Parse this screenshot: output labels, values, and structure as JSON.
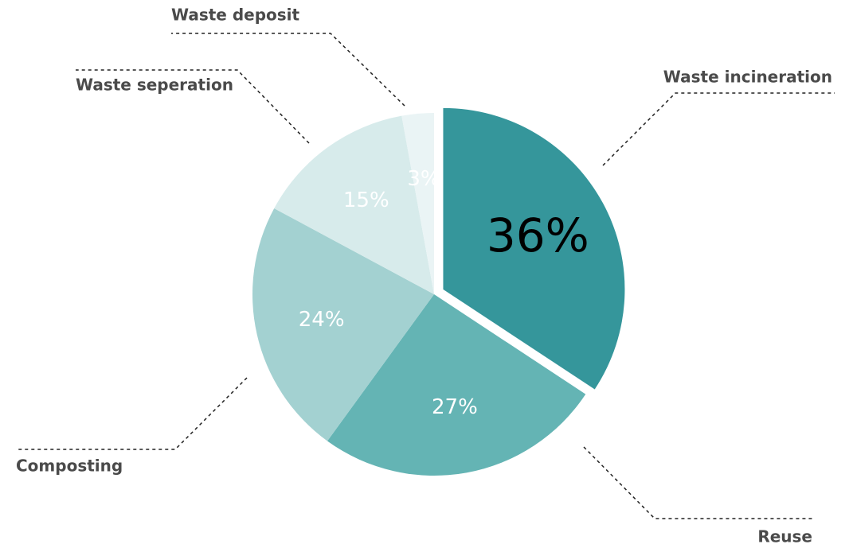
{
  "chart_data": {
    "type": "pie",
    "categories": [
      "Waste incineration",
      "Reuse",
      "Composting",
      "Waste seperation",
      "Waste deposit"
    ],
    "values": [
      36,
      27,
      24,
      15,
      3
    ],
    "value_labels": [
      "36%",
      "27%",
      "24%",
      "15%",
      "3%"
    ],
    "colors": [
      "#35969b",
      "#64b4b4",
      "#a3d1d1",
      "#d7ebeb",
      "#eaf4f5"
    ],
    "exploded": [
      true,
      false,
      false,
      false,
      false
    ]
  }
}
